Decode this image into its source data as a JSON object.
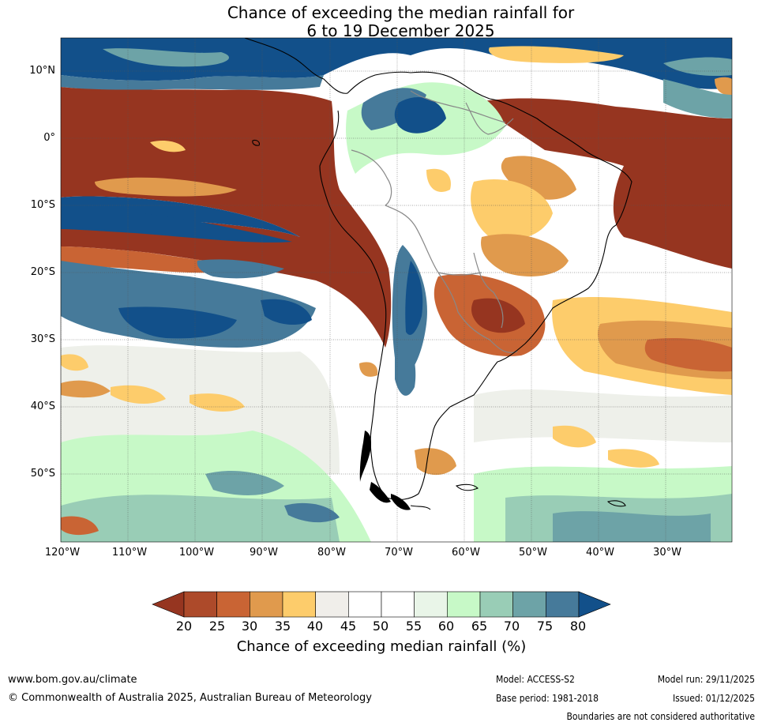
{
  "title_line1": "Chance of exceeding the median rainfall for",
  "title_line2": "6 to 19 December 2025",
  "lat_labels": [
    "10°N",
    "0°",
    "10°S",
    "20°S",
    "30°S",
    "40°S",
    "50°S"
  ],
  "lon_labels": [
    "120°W",
    "110°W",
    "100°W",
    "90°W",
    "80°W",
    "70°W",
    "60°W",
    "50°W",
    "40°W",
    "30°W"
  ],
  "colorbar": {
    "ticks": [
      "20",
      "25",
      "30",
      "35",
      "40",
      "45",
      "50",
      "55",
      "60",
      "65",
      "70",
      "75",
      "80"
    ],
    "colors": [
      "#963520",
      "#ad4a2a",
      "#c96434",
      "#e09a4d",
      "#fdcc6b",
      "#f0eeea",
      "#ffffff",
      "#ffffff",
      "#e9f5e8",
      "#c7f9c7",
      "#99cdb6",
      "#6da3a7",
      "#467a9a",
      "#12508a"
    ],
    "title": "Chance of exceeding median rainfall (%)"
  },
  "footer": {
    "url": "www.bom.gov.au/climate",
    "copyright": "© Commonwealth of Australia 2025, Australian Bureau of Meteorology",
    "model": "Model: ACCESS-S2",
    "base_period": "Base period: 1981-2018",
    "model_run": "Model run: 29/11/2025",
    "issued": "Issued: 01/12/2025",
    "disclaimer": "Boundaries are not considered authoritative"
  }
}
